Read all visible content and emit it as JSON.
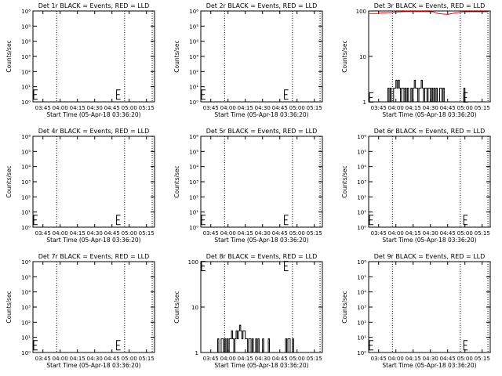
{
  "figure": {
    "x_tick_labels": [
      "03:45",
      "04:00",
      "04:15",
      "04:30",
      "04:45",
      "05:00",
      "05:15"
    ],
    "x_tick_minutes": [
      0,
      15,
      30,
      45,
      60,
      75,
      90
    ],
    "x_start_minute": -8.67,
    "x_end_minute": 97,
    "dotted_line_minutes": [
      12,
      71,
      95
    ],
    "event_color": "#000000",
    "lld_color": "#ff0000"
  },
  "chart_data": [
    {
      "type": "line",
      "title": "Det 1r BLACK = Events, RED = LLD",
      "xlabel": "Start Time (05-Apr-18 03:36:20)",
      "ylabel": "Counts/sec",
      "yscale": "log",
      "ylim": [
        1,
        1000000
      ],
      "y_tick_labels": [
        "10⁰",
        "10¹",
        "10²",
        "10³",
        "10⁴",
        "10⁵",
        "10⁶"
      ],
      "y_tick_values": [
        1,
        10,
        100,
        1000,
        10000,
        100000,
        1000000
      ],
      "series": [],
      "error_bar_markers": [
        {
          "x": -8,
          "y": 3
        },
        {
          "x": 64,
          "y": 3
        }
      ]
    },
    {
      "type": "line",
      "title": "Det 2r BLACK = Events, RED = LLD",
      "xlabel": "Start Time (05-Apr-18 03:36:20)",
      "ylabel": "Counts/sec",
      "yscale": "log",
      "ylim": [
        1,
        1000000
      ],
      "y_tick_labels": [
        "10⁰",
        "10¹",
        "10²",
        "10³",
        "10⁴",
        "10⁵",
        "10⁶"
      ],
      "y_tick_values": [
        1,
        10,
        100,
        1000,
        10000,
        100000,
        1000000
      ],
      "series": [],
      "error_bar_markers": [
        {
          "x": -8,
          "y": 3
        },
        {
          "x": 64,
          "y": 3
        }
      ]
    },
    {
      "type": "line",
      "title": "Det 3r BLACK = Events, RED = LLD",
      "xlabel": "Start Time (05-Apr-18 03:36:20)",
      "ylabel": "Counts/sec",
      "yscale": "log",
      "ylim": [
        1,
        100
      ],
      "y_tick_labels": [
        "1",
        "10",
        "100"
      ],
      "y_tick_values": [
        1,
        10,
        100
      ],
      "series": [
        {
          "style": "step",
          "color": "#000000",
          "x": [
            7,
            8,
            9,
            10,
            11,
            12,
            13,
            14,
            15,
            16,
            17,
            18,
            19,
            20,
            21,
            22,
            23,
            24,
            25,
            26,
            27,
            28,
            29,
            30,
            31,
            32,
            33,
            34,
            35,
            36,
            37,
            38,
            39,
            40,
            41,
            42,
            43,
            44,
            45,
            46,
            47,
            48,
            49,
            50,
            51,
            52,
            53,
            54,
            55,
            56,
            57,
            58,
            59,
            60,
            61,
            62,
            63,
            64,
            65,
            66,
            67,
            68,
            69,
            70,
            71,
            72,
            73,
            74
          ],
          "y": [
            1,
            2,
            1,
            2,
            1,
            1,
            2,
            2,
            3,
            2,
            3,
            2,
            1,
            2,
            2,
            1,
            2,
            1,
            2,
            1,
            1,
            2,
            1,
            2,
            3,
            2,
            2,
            1,
            2,
            2,
            3,
            2,
            1,
            2,
            2,
            1,
            2,
            2,
            1,
            2,
            1,
            2,
            1,
            2,
            1,
            1,
            2,
            2,
            1,
            2,
            1,
            1,
            1,
            1,
            1,
            1,
            1,
            1,
            1,
            1,
            1,
            1,
            1,
            1,
            1,
            1,
            1,
            2
          ]
        },
        {
          "style": "line",
          "color": "#ff0000",
          "x": [
            -8,
            -5,
            -2,
            0,
            2,
            4,
            6,
            8,
            10,
            12,
            15,
            18,
            20,
            25,
            30,
            35,
            40,
            45,
            48,
            50,
            52,
            55,
            58,
            60,
            62,
            64,
            66,
            68,
            70,
            72,
            75,
            80,
            85,
            90,
            95
          ],
          "y": [
            88,
            88,
            88,
            89,
            90,
            91,
            91,
            92,
            92,
            93,
            95,
            95,
            96,
            97,
            97,
            97,
            97,
            96,
            95,
            90,
            88,
            86,
            85,
            84,
            86,
            88,
            90,
            91,
            93,
            95,
            96,
            96,
            96,
            96,
            96
          ]
        }
      ],
      "error_bar_markers": [
        {
          "x": -8,
          "y": 1.25
        },
        {
          "x": 74,
          "y": 1.25
        }
      ]
    },
    {
      "type": "line",
      "title": "Det 4r BLACK = Events, RED = LLD",
      "xlabel": "Start Time (05-Apr-18 03:36:20)",
      "ylabel": "Counts/sec",
      "yscale": "log",
      "ylim": [
        1,
        1000000
      ],
      "y_tick_labels": [
        "10⁰",
        "10¹",
        "10²",
        "10³",
        "10⁴",
        "10⁵",
        "10⁶"
      ],
      "y_tick_values": [
        1,
        10,
        100,
        1000,
        10000,
        100000,
        1000000
      ],
      "series": [],
      "error_bar_markers": [
        {
          "x": -8,
          "y": 3
        },
        {
          "x": 64,
          "y": 3
        }
      ]
    },
    {
      "type": "line",
      "title": "Det 5r BLACK = Events, RED = LLD",
      "xlabel": "Start Time (05-Apr-18 03:36:20)",
      "ylabel": "Counts/sec",
      "yscale": "log",
      "ylim": [
        1,
        1000000
      ],
      "y_tick_labels": [
        "10⁰",
        "10¹",
        "10²",
        "10³",
        "10⁴",
        "10⁵",
        "10⁶"
      ],
      "y_tick_values": [
        1,
        10,
        100,
        1000,
        10000,
        100000,
        1000000
      ],
      "series": [],
      "error_bar_markers": [
        {
          "x": -8,
          "y": 3
        },
        {
          "x": 64,
          "y": 3
        }
      ]
    },
    {
      "type": "line",
      "title": "Det 6r BLACK = Events, RED = LLD",
      "xlabel": "Start Time (05-Apr-18 03:36:20)",
      "ylabel": "Counts/sec",
      "yscale": "log",
      "ylim": [
        1,
        1000000
      ],
      "y_tick_labels": [
        "10⁰",
        "10¹",
        "10²",
        "10³",
        "10⁴",
        "10⁵",
        "10⁶"
      ],
      "y_tick_values": [
        1,
        10,
        100,
        1000,
        10000,
        100000,
        1000000
      ],
      "series": [],
      "error_bar_markers": [
        {
          "x": -8,
          "y": 3
        },
        {
          "x": 74,
          "y": 3
        }
      ]
    },
    {
      "type": "line",
      "title": "Det 7r BLACK = Events, RED = LLD",
      "xlabel": "Start Time (05-Apr-18 03:36:20)",
      "ylabel": "Counts/sec",
      "yscale": "log",
      "ylim": [
        1,
        1000000
      ],
      "y_tick_labels": [
        "10⁰",
        "10¹",
        "10²",
        "10³",
        "10⁴",
        "10⁵",
        "10⁶"
      ],
      "y_tick_values": [
        1,
        10,
        100,
        1000,
        10000,
        100000,
        1000000
      ],
      "series": [],
      "error_bar_markers": [
        {
          "x": -8,
          "y": 3
        },
        {
          "x": 64,
          "y": 3
        }
      ]
    },
    {
      "type": "line",
      "title": "Det 8r BLACK = Events, RED = LLD",
      "xlabel": "Start Time (05-Apr-18 03:36:20)",
      "ylabel": "Counts/sec",
      "yscale": "log",
      "ylim": [
        1,
        100
      ],
      "y_tick_labels": [
        "1",
        "10",
        "100"
      ],
      "y_tick_values": [
        1,
        10,
        100
      ],
      "series": [
        {
          "style": "step",
          "color": "#000000",
          "x": [
            5,
            6,
            7,
            8,
            9,
            10,
            11,
            12,
            13,
            14,
            15,
            16,
            17,
            18,
            19,
            20,
            21,
            22,
            23,
            24,
            25,
            26,
            27,
            28,
            29,
            30,
            31,
            32,
            33,
            34,
            35,
            36,
            37,
            38,
            39,
            40,
            41,
            42,
            43,
            44,
            45,
            46,
            47,
            48,
            49,
            50,
            51,
            52,
            53,
            54,
            55,
            56,
            57,
            58,
            59,
            60,
            61,
            62,
            63,
            64,
            65,
            66,
            67,
            68,
            69,
            70,
            71,
            72,
            73,
            74
          ],
          "y": [
            1,
            2,
            1,
            1,
            2,
            2,
            1,
            2,
            1,
            2,
            1,
            2,
            2,
            3,
            2,
            1,
            2,
            3,
            2,
            3,
            4,
            3,
            2,
            3,
            3,
            2,
            2,
            1,
            2,
            2,
            1,
            2,
            1,
            1,
            2,
            1,
            2,
            1,
            1,
            1,
            2,
            1,
            1,
            1,
            1,
            2,
            1,
            1,
            1,
            1,
            1,
            1,
            1,
            1,
            1,
            1,
            1,
            1,
            1,
            1,
            2,
            1,
            2,
            2,
            1,
            1,
            2,
            1,
            1,
            1
          ]
        }
      ],
      "error_bar_markers": [
        {
          "x": -8,
          "y": 80
        },
        {
          "x": 64,
          "y": 80
        }
      ]
    },
    {
      "type": "line",
      "title": "Det 9r BLACK = Events, RED = LLD",
      "xlabel": "Start Time (05-Apr-18 03:36:20)",
      "ylabel": "Counts/sec",
      "yscale": "log",
      "ylim": [
        1,
        1000000
      ],
      "y_tick_labels": [
        "10⁰",
        "10¹",
        "10²",
        "10³",
        "10⁴",
        "10⁵",
        "10⁶"
      ],
      "y_tick_values": [
        1,
        10,
        100,
        1000,
        10000,
        100000,
        1000000
      ],
      "series": [],
      "error_bar_markers": [
        {
          "x": -8,
          "y": 3
        },
        {
          "x": 74,
          "y": 3
        }
      ]
    }
  ]
}
